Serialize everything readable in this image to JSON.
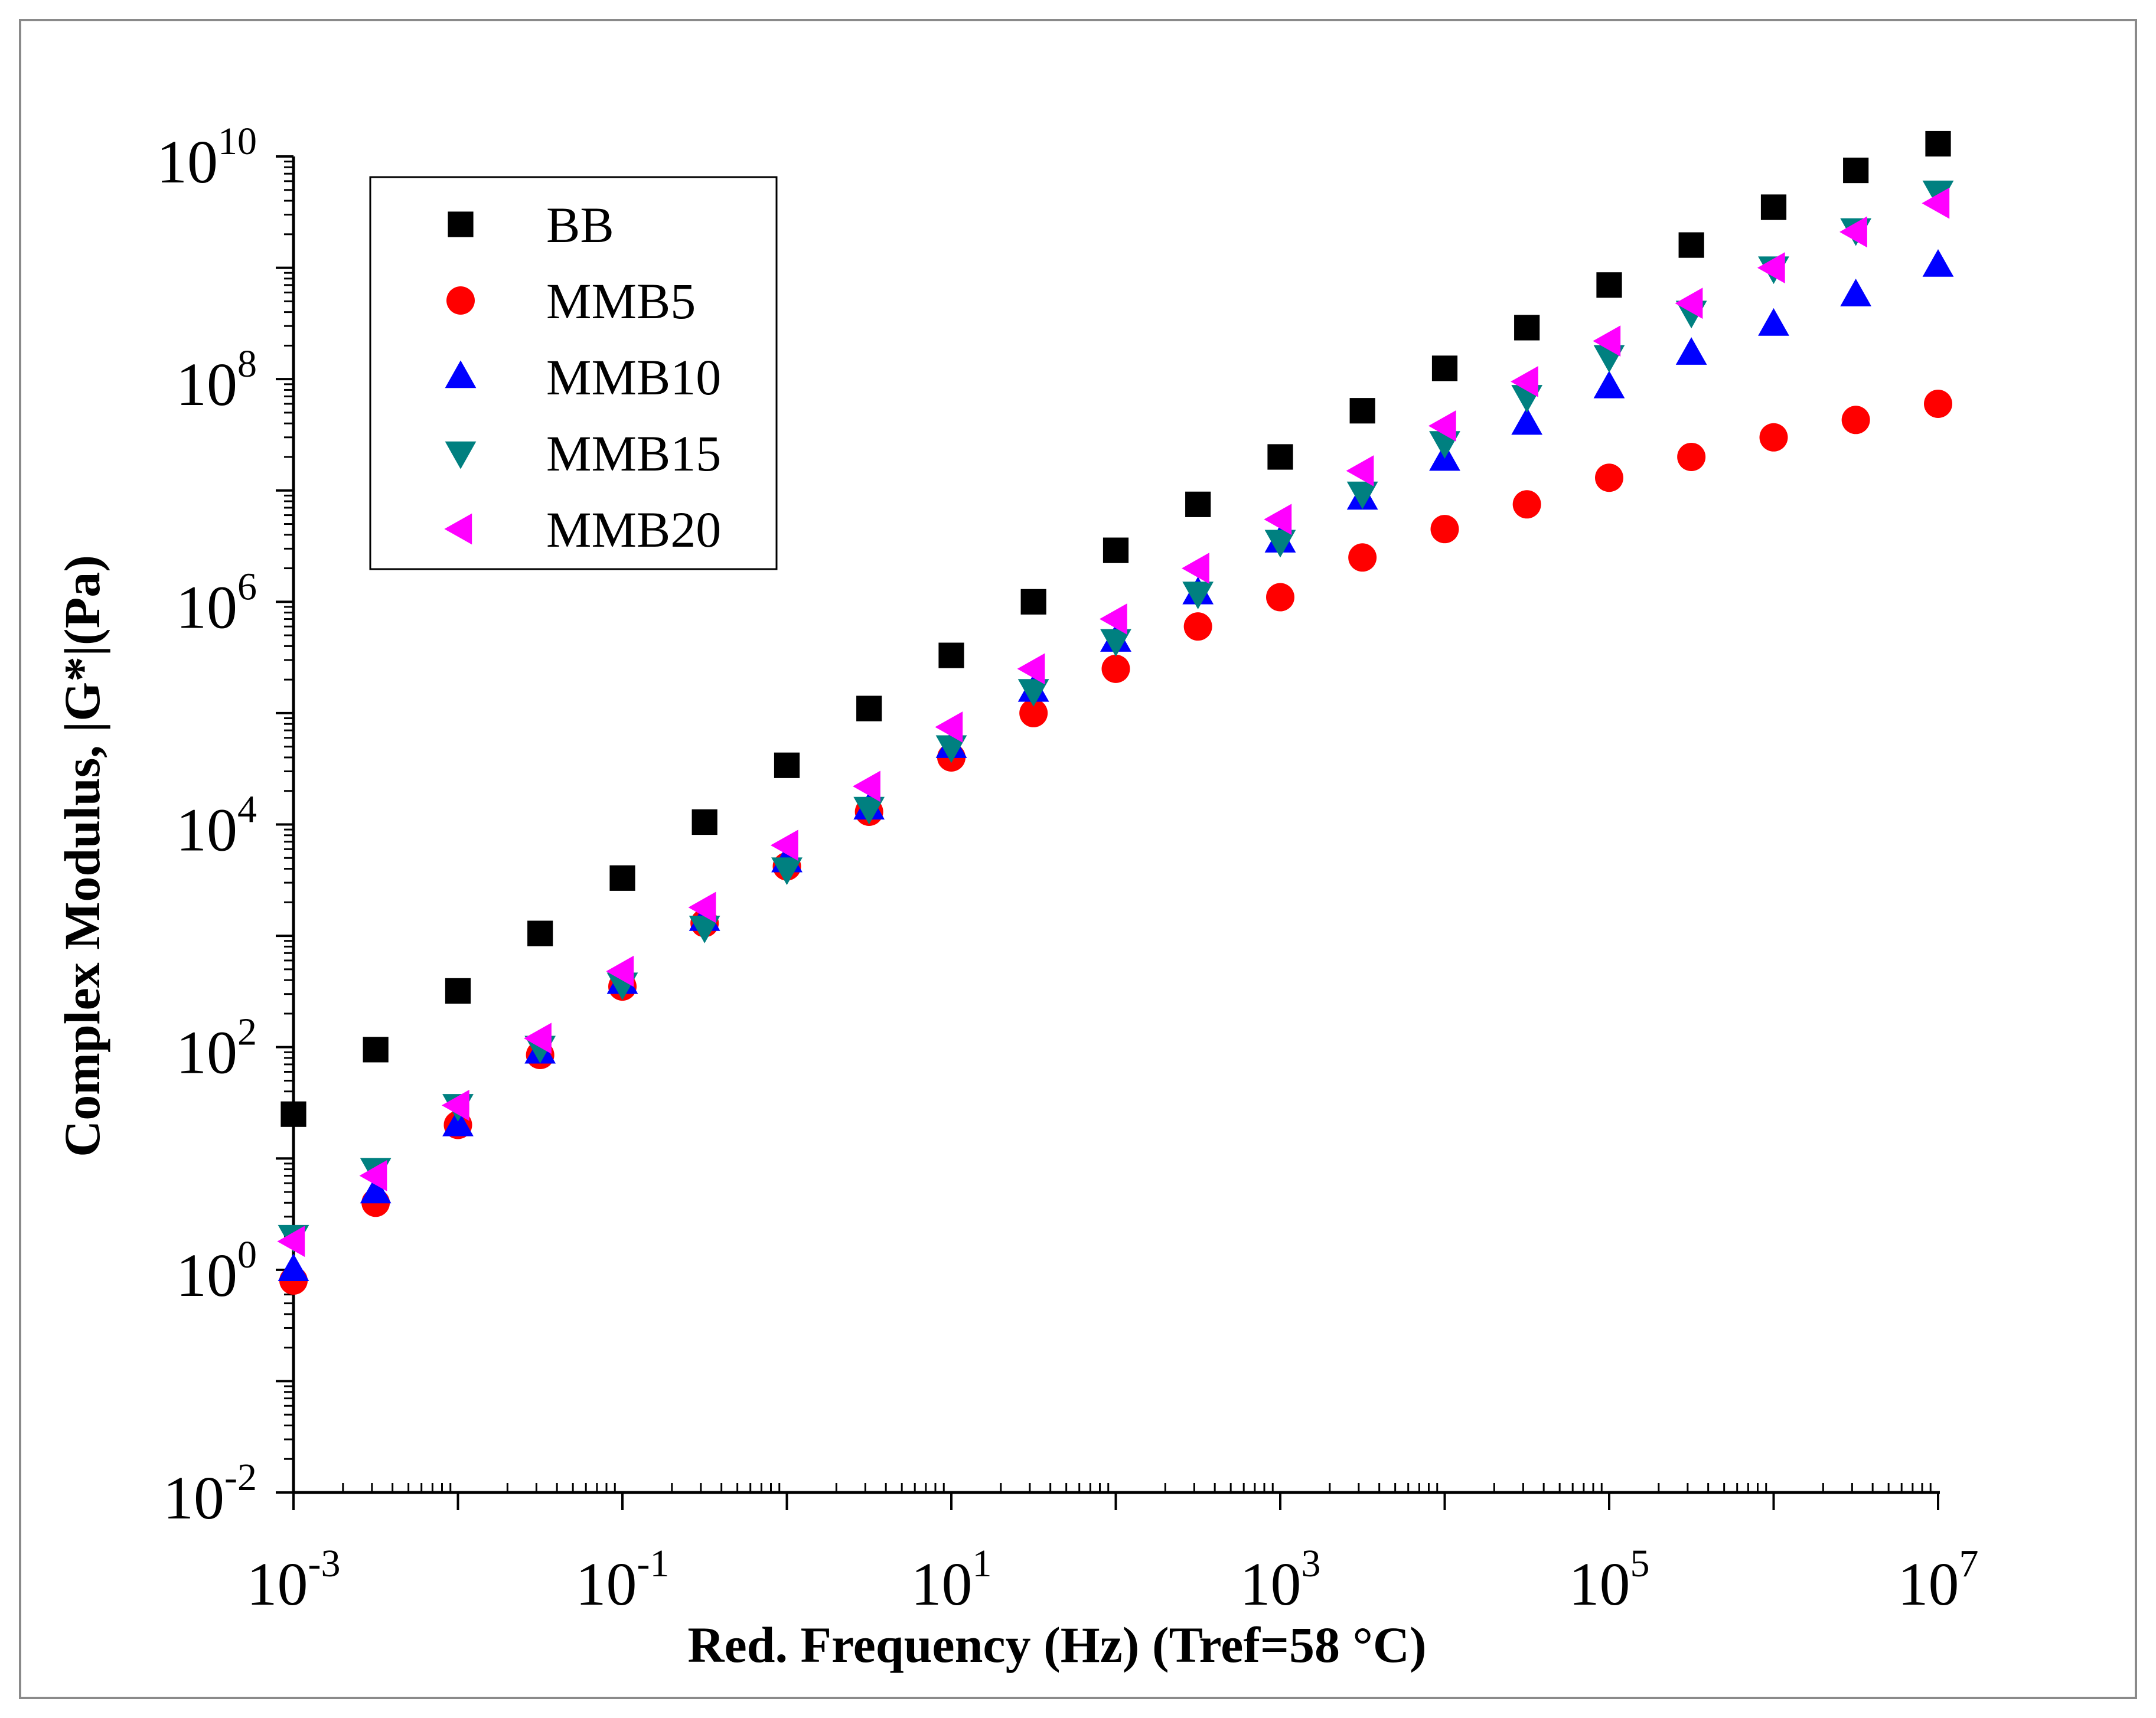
{
  "chart_data": {
    "type": "scatter",
    "xscale": "log",
    "yscale": "log",
    "xlabel": "Red. Frequency (Hz) (Tref=58 °C)",
    "ylabel": "Complex Modulus, |G*|(Pa)",
    "xlim": [
      0.001,
      10000000
    ],
    "ylim": [
      0.01,
      10000000000
    ],
    "x_ticks": [
      {
        "value": 0.001,
        "base": "10",
        "exp": "-3"
      },
      {
        "value": 0.1,
        "base": "10",
        "exp": "-1"
      },
      {
        "value": 10,
        "base": "10",
        "exp": "1"
      },
      {
        "value": 1000,
        "base": "10",
        "exp": "3"
      },
      {
        "value": 100000,
        "base": "10",
        "exp": "5"
      },
      {
        "value": 10000000,
        "base": "10",
        "exp": "7"
      }
    ],
    "y_ticks": [
      {
        "value": 0.01,
        "base": "10",
        "exp": "-2"
      },
      {
        "value": 1,
        "base": "10",
        "exp": "0"
      },
      {
        "value": 100,
        "base": "10",
        "exp": "2"
      },
      {
        "value": 10000,
        "base": "10",
        "exp": "4"
      },
      {
        "value": 1000000,
        "base": "10",
        "exp": "6"
      },
      {
        "value": 100000000,
        "base": "10",
        "exp": "8"
      },
      {
        "value": 10000000000,
        "base": "10",
        "exp": "10"
      }
    ],
    "legend_position": "top-left",
    "x": [
      0.001,
      0.00316,
      0.01,
      0.0316,
      0.1,
      0.316,
      1,
      3.16,
      10,
      31.6,
      100,
      316,
      1000,
      3160,
      10000,
      31600,
      100000,
      316000,
      1000000,
      3160000,
      10000000
    ],
    "series": [
      {
        "name": "BB",
        "marker": "square",
        "color": "#000000",
        "values": [
          25,
          95,
          320,
          1050,
          3300,
          10500,
          34000,
          110000,
          330000,
          1000000,
          2900000,
          7500000,
          20000000,
          52000000,
          125000000,
          290000000,
          700000000,
          1600000000,
          3500000000,
          7500000000,
          13000000000
        ]
      },
      {
        "name": "MMB5",
        "marker": "circle",
        "color": "#ff0000",
        "values": [
          0.8,
          4,
          20,
          85,
          350,
          1300,
          4200,
          13000,
          40000,
          100000,
          250000,
          600000,
          1100000,
          2500000,
          4500000,
          7500000,
          13000000,
          20000000,
          30000000,
          43000000,
          60000000
        ]
      },
      {
        "name": "MMB10",
        "marker": "triangle-up",
        "color": "#0000ff",
        "values": [
          1,
          5,
          20,
          90,
          380,
          1400,
          4700,
          14000,
          50000,
          160000,
          450000,
          1200000,
          3500000,
          8500000,
          19000000,
          40000000,
          85000000,
          170000000,
          310000000,
          570000000,
          1050000000
        ]
      },
      {
        "name": "MMB15",
        "marker": "triangle-down",
        "color": "#008080",
        "values": [
          2,
          8,
          30,
          100,
          370,
          1200,
          4000,
          14000,
          50000,
          160000,
          450000,
          1200000,
          3500000,
          9500000,
          27000000,
          70000000,
          160000000,
          400000000,
          1000000000,
          2200000000,
          4800000000
        ]
      },
      {
        "name": "MMB20",
        "marker": "triangle-left",
        "color": "#ff00ff",
        "values": [
          1.8,
          7,
          30,
          120,
          480,
          1800,
          6500,
          22000,
          75000,
          250000,
          700000,
          2000000,
          5500000,
          15000000,
          38000000,
          95000000,
          220000000,
          480000000,
          1000000000,
          2100000000,
          3800000000
        ]
      }
    ]
  }
}
